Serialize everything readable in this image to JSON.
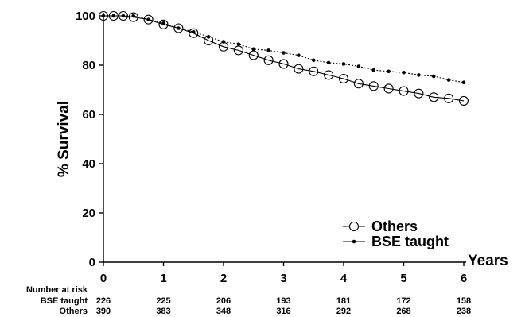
{
  "chart_data": {
    "type": "line",
    "ylabel": "% Survival",
    "xlabel": "Years",
    "xlim": [
      0,
      6
    ],
    "ylim": [
      0,
      100
    ],
    "x_ticks": [
      0,
      1,
      2,
      3,
      4,
      5,
      6
    ],
    "y_ticks": [
      0,
      20,
      40,
      60,
      80,
      100
    ],
    "grid": false,
    "legend_position": "bottom-right",
    "series": [
      {
        "name": "Others",
        "marker": "open-circle",
        "points": [
          [
            0.0,
            100
          ],
          [
            0.17,
            100
          ],
          [
            0.33,
            100
          ],
          [
            0.5,
            99.5
          ],
          [
            0.75,
            98.5
          ],
          [
            1.0,
            96.5
          ],
          [
            1.25,
            95
          ],
          [
            1.5,
            93
          ],
          [
            1.75,
            90
          ],
          [
            2.0,
            87.5
          ],
          [
            2.25,
            86
          ],
          [
            2.5,
            84
          ],
          [
            2.75,
            82
          ],
          [
            3.0,
            80.5
          ],
          [
            3.25,
            78.5
          ],
          [
            3.5,
            77.5
          ],
          [
            3.75,
            76
          ],
          [
            4.0,
            74.5
          ],
          [
            4.25,
            72.5
          ],
          [
            4.5,
            71.5
          ],
          [
            4.75,
            70.5
          ],
          [
            5.0,
            69.5
          ],
          [
            5.25,
            68.5
          ],
          [
            5.5,
            67
          ],
          [
            5.75,
            66.5
          ],
          [
            6.0,
            65.5
          ]
        ]
      },
      {
        "name": "BSE taught",
        "marker": "small-dot",
        "points": [
          [
            0.0,
            100
          ],
          [
            0.17,
            100
          ],
          [
            0.33,
            100
          ],
          [
            0.5,
            100
          ],
          [
            0.75,
            98.5
          ],
          [
            1.0,
            97
          ],
          [
            1.25,
            95
          ],
          [
            1.5,
            93.5
          ],
          [
            1.75,
            91.5
          ],
          [
            2.0,
            89.5
          ],
          [
            2.25,
            88.5
          ],
          [
            2.5,
            86.5
          ],
          [
            2.75,
            86
          ],
          [
            3.0,
            85
          ],
          [
            3.25,
            84
          ],
          [
            3.5,
            82
          ],
          [
            3.75,
            81
          ],
          [
            4.0,
            80.5
          ],
          [
            4.25,
            79.5
          ],
          [
            4.5,
            78
          ],
          [
            4.75,
            77.5
          ],
          [
            5.0,
            77
          ],
          [
            5.25,
            76
          ],
          [
            5.5,
            75.5
          ],
          [
            5.75,
            74
          ],
          [
            6.0,
            73
          ]
        ]
      }
    ],
    "number_at_risk": {
      "title": "Number at risk",
      "years": [
        0,
        1,
        2,
        3,
        4,
        5,
        6
      ],
      "rows": [
        {
          "label": "BSE taught",
          "values": [
            "226",
            "225",
            "206",
            "193",
            "181",
            "172",
            "158"
          ]
        },
        {
          "label": "Others",
          "values": [
            "390",
            "383",
            "348",
            "316",
            "292",
            "268",
            "238"
          ]
        }
      ]
    }
  }
}
